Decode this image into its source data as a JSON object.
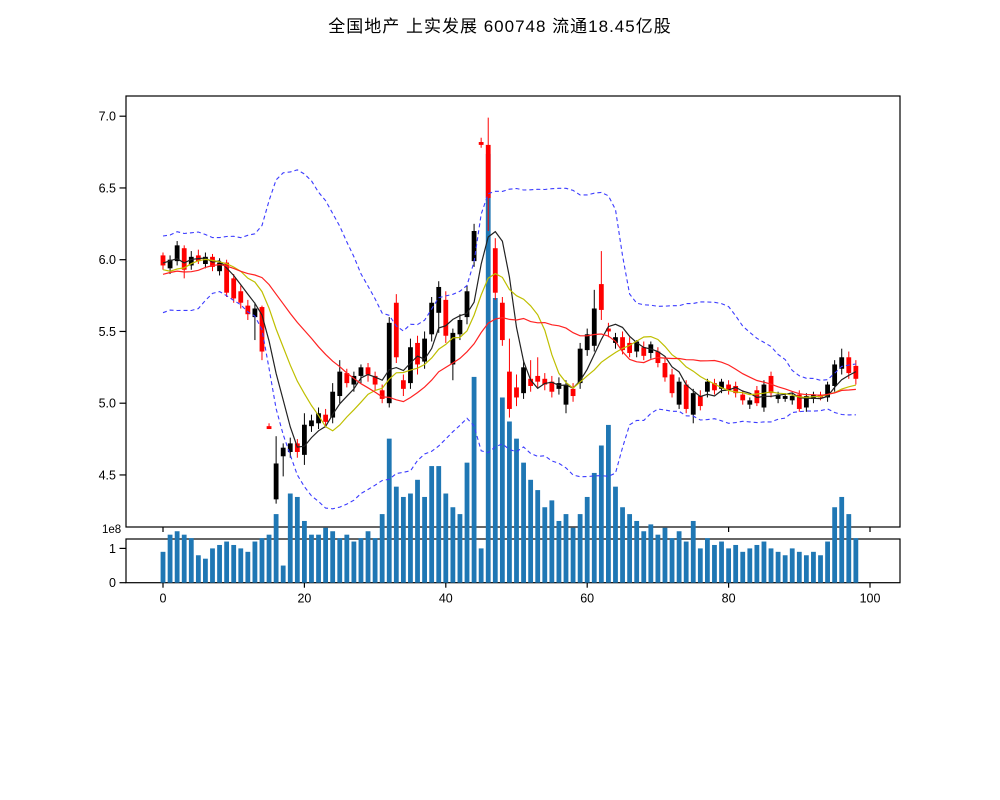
{
  "title": "全国地产 上实发展 600748 流通18.45亿股",
  "chart_data": {
    "type": "candlestick",
    "title": "全国地产 上实发展 600748 流通18.45亿股",
    "panels": [
      "price-candlestick-with-ma-and-bollinger",
      "volume-bars"
    ],
    "x_axis": {
      "tick_values": [
        0,
        20,
        40,
        60,
        80,
        100
      ],
      "tick_labels": [
        "0",
        "20",
        "40",
        "60",
        "80",
        "100"
      ],
      "range": [
        -5.2,
        104.2
      ]
    },
    "price_axis": {
      "tick_values": [
        7.0,
        6.5,
        6.0,
        5.5,
        5.0,
        4.5
      ],
      "tick_labels": [
        "7.0",
        "6.5",
        "6.0",
        "5.5",
        "5.0",
        "4.5"
      ],
      "range": [
        4.14,
        7.14
      ]
    },
    "volume_axis": {
      "tick_values": [
        0,
        1
      ],
      "tick_labels": [
        "0",
        "1"
      ],
      "offset_label": "1e8",
      "range_1e8": [
        0,
        1.28
      ]
    },
    "ohlc": {
      "open": [
        6.03,
        5.94,
        5.99,
        6.08,
        5.96,
        6.03,
        5.97,
        6.02,
        5.92,
        5.98,
        5.87,
        5.78,
        5.68,
        5.6,
        5.67,
        4.84,
        4.33,
        4.63,
        4.66,
        4.72,
        4.64,
        4.84,
        4.86,
        4.92,
        4.9,
        5.05,
        5.21,
        5.13,
        5.19,
        5.25,
        5.19,
        5.09,
        5.0,
        5.7,
        5.16,
        5.14,
        5.42,
        5.29,
        5.48,
        5.63,
        5.72,
        5.27,
        5.48,
        5.6,
        5.99,
        6.82,
        6.8,
        6.08,
        5.7,
        5.22,
        5.11,
        5.07,
        5.17,
        5.19,
        5.17,
        5.15,
        5.1,
        4.99,
        5.1,
        5.14,
        5.37,
        5.4,
        5.83,
        5.52,
        5.42,
        5.46,
        5.42,
        5.36,
        5.39,
        5.35,
        5.36,
        5.28,
        5.2,
        4.99,
        5.13,
        4.92,
        5.05,
        5.08,
        5.14,
        5.1,
        5.13,
        5.12,
        5.06,
        4.99,
        5.09,
        4.97,
        5.19,
        5.03,
        5.03,
        5.02,
        5.06,
        4.97,
        5.03,
        5.06,
        5.04,
        5.12,
        5.24,
        5.32,
        5.26
      ],
      "high": [
        6.05,
        6.03,
        6.13,
        6.1,
        6.06,
        6.07,
        6.05,
        6.04,
        6.01,
        6.0,
        5.9,
        5.82,
        5.72,
        5.7,
        5.68,
        4.86,
        4.77,
        4.72,
        4.76,
        4.75,
        4.93,
        4.92,
        4.97,
        4.96,
        5.14,
        5.3,
        5.24,
        5.22,
        5.27,
        5.28,
        5.22,
        5.13,
        5.6,
        5.76,
        5.2,
        5.45,
        5.47,
        5.5,
        5.74,
        5.85,
        5.78,
        5.52,
        5.62,
        5.82,
        6.25,
        6.85,
        6.99,
        6.15,
        5.74,
        5.45,
        5.2,
        5.3,
        5.3,
        5.32,
        5.21,
        5.19,
        5.18,
        5.16,
        5.14,
        5.42,
        5.52,
        5.79,
        6.06,
        5.56,
        5.49,
        5.5,
        5.46,
        5.44,
        5.43,
        5.43,
        5.39,
        5.32,
        5.24,
        5.18,
        5.16,
        5.1,
        5.09,
        5.17,
        5.17,
        5.17,
        5.16,
        5.15,
        5.09,
        5.04,
        5.12,
        5.16,
        5.22,
        5.08,
        5.07,
        5.07,
        5.09,
        5.07,
        5.08,
        5.08,
        5.15,
        5.3,
        5.38,
        5.36,
        5.3
      ],
      "low": [
        5.93,
        5.9,
        5.96,
        5.87,
        5.93,
        5.97,
        5.94,
        5.92,
        5.89,
        5.74,
        5.7,
        5.66,
        5.58,
        5.44,
        5.3,
        4.82,
        4.3,
        4.49,
        4.62,
        4.62,
        4.57,
        4.8,
        4.82,
        4.83,
        4.86,
        5.0,
        5.11,
        5.08,
        5.14,
        5.15,
        5.09,
        5.0,
        4.97,
        5.28,
        5.05,
        5.1,
        5.2,
        5.24,
        5.43,
        5.49,
        5.42,
        5.16,
        5.44,
        5.55,
        5.95,
        6.78,
        6.2,
        5.72,
        5.4,
        4.9,
        4.98,
        5.03,
        5.08,
        5.11,
        5.09,
        5.04,
        5.06,
        4.93,
        5.01,
        5.1,
        5.33,
        5.36,
        5.58,
        5.46,
        5.38,
        5.34,
        5.32,
        5.32,
        5.3,
        5.31,
        5.25,
        5.15,
        5.04,
        4.96,
        4.93,
        4.86,
        4.95,
        5.04,
        5.06,
        5.07,
        5.06,
        5.04,
        4.99,
        4.96,
        4.98,
        4.94,
        5.04,
        5.0,
        5.01,
        4.99,
        4.94,
        4.94,
        5.0,
        5.02,
        5.01,
        5.08,
        5.2,
        5.17,
        5.13
      ],
      "close": [
        5.96,
        6.0,
        6.1,
        5.93,
        6.02,
        5.99,
        6.02,
        5.95,
        5.98,
        5.77,
        5.73,
        5.7,
        5.62,
        5.66,
        5.36,
        4.82,
        4.58,
        4.69,
        4.72,
        4.66,
        4.85,
        4.88,
        4.93,
        4.87,
        5.08,
        5.22,
        5.14,
        5.19,
        5.25,
        5.2,
        5.13,
        5.03,
        5.56,
        5.32,
        5.1,
        5.39,
        5.27,
        5.45,
        5.7,
        5.81,
        5.47,
        5.49,
        5.58,
        5.78,
        6.2,
        6.8,
        6.43,
        5.77,
        5.44,
        4.96,
        5.04,
        5.25,
        5.12,
        5.15,
        5.13,
        5.08,
        5.14,
        5.13,
        5.05,
        5.38,
        5.48,
        5.66,
        5.65,
        5.5,
        5.46,
        5.37,
        5.35,
        5.43,
        5.33,
        5.41,
        5.28,
        5.18,
        5.07,
        5.15,
        4.96,
        5.07,
        4.98,
        5.15,
        5.09,
        5.15,
        5.09,
        5.07,
        5.02,
        5.02,
        5.0,
        5.13,
        5.07,
        5.06,
        5.05,
        5.05,
        4.96,
        5.05,
        5.06,
        5.04,
        5.13,
        5.27,
        5.32,
        5.21,
        5.17
      ]
    },
    "volume_1e7": [
      9,
      14,
      15,
      14,
      13,
      8,
      7,
      10,
      11,
      12,
      11,
      10,
      9,
      12,
      13,
      14,
      20,
      5,
      26,
      25,
      18,
      14,
      14,
      16,
      15,
      13,
      14,
      12,
      13,
      15,
      13,
      20,
      42,
      28,
      25,
      26,
      30,
      25,
      34,
      34,
      26,
      22,
      20,
      35,
      60,
      10,
      125,
      83,
      54,
      47,
      42,
      35,
      30,
      27,
      22,
      24,
      18,
      20,
      16,
      20,
      25,
      32,
      40,
      46,
      28,
      22,
      20,
      18,
      15,
      17,
      14,
      16,
      13,
      15,
      12,
      18,
      10,
      13,
      11,
      12,
      10,
      11,
      9,
      10,
      11,
      12,
      10,
      9,
      8,
      10,
      9,
      8,
      9,
      8,
      12,
      22,
      25,
      20,
      13
    ],
    "overlays": {
      "moving_averages": [
        {
          "name": "MA5",
          "window": 5,
          "color": "#222222"
        },
        {
          "name": "MA10",
          "window": 10,
          "color": "#bfbf00"
        },
        {
          "name": "MA20",
          "window": 20,
          "color": "#ff2222"
        }
      ],
      "bollinger": {
        "window": 20,
        "mult": 2,
        "color": "#3b3bff",
        "style": "dashed"
      }
    },
    "pre_window_closes": [
      5.7,
      5.75,
      5.9,
      6.05,
      5.98,
      5.8,
      5.62,
      5.68,
      5.85,
      5.98,
      6.05,
      6.1,
      5.95,
      5.85,
      5.72,
      5.8,
      5.92,
      6.02,
      6.08,
      5.9
    ],
    "colors": {
      "candle_up": "#000000",
      "candle_down": "#ff0000",
      "volume_bar": "#1f77b4",
      "frame": "#000000",
      "background": "#ffffff"
    }
  }
}
